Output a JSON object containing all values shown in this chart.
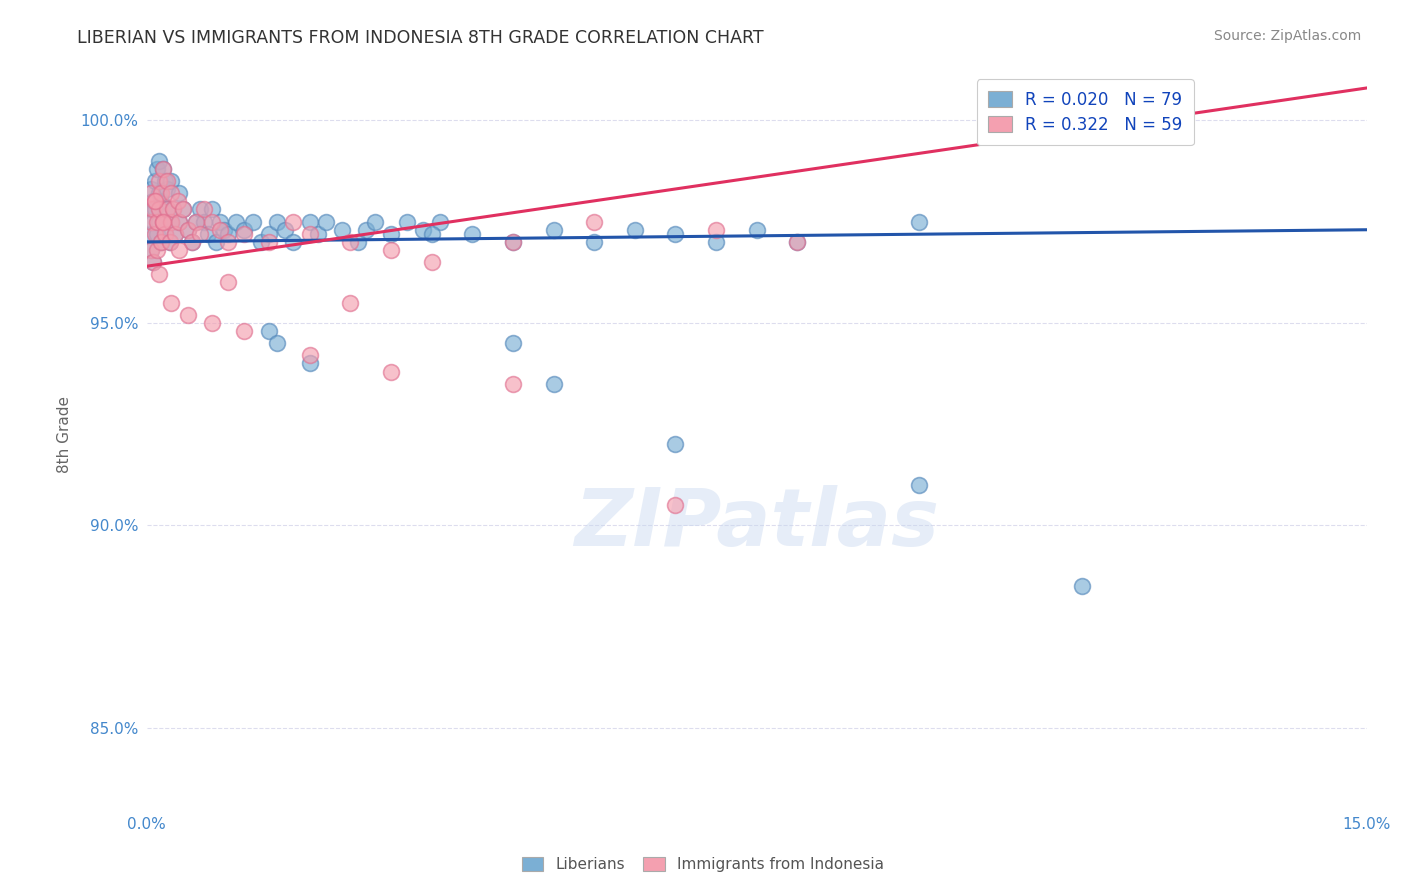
{
  "title": "LIBERIAN VS IMMIGRANTS FROM INDONESIA 8TH GRADE CORRELATION CHART",
  "source": "Source: ZipAtlas.com",
  "ylabel": "8th Grade",
  "xlim": [
    0.0,
    15.0
  ],
  "ylim": [
    83.0,
    101.5
  ],
  "y_ticks": [
    85.0,
    90.0,
    95.0,
    100.0
  ],
  "y_tick_labels": [
    "85.0%",
    "90.0%",
    "95.0%",
    "100.0%"
  ],
  "x_ticks": [
    0.0,
    5.0,
    10.0,
    15.0
  ],
  "x_tick_labels": [
    "0.0%",
    "",
    "",
    "15.0%"
  ],
  "grid_color": "#ddddee",
  "background_color": "#ffffff",
  "blue_color": "#7bafd4",
  "pink_color": "#f4a0b0",
  "blue_edge_color": "#5588bb",
  "pink_edge_color": "#e07090",
  "blue_line_color": "#2255aa",
  "pink_line_color": "#e03060",
  "R_blue": 0.02,
  "N_blue": 79,
  "R_pink": 0.322,
  "N_pink": 59,
  "legend_label_blue": "Liberians",
  "legend_label_pink": "Immigrants from Indonesia",
  "watermark": "ZIPatlas",
  "blue_scatter_x": [
    0.05,
    0.05,
    0.05,
    0.05,
    0.08,
    0.08,
    0.08,
    0.1,
    0.1,
    0.12,
    0.12,
    0.15,
    0.15,
    0.15,
    0.18,
    0.18,
    0.2,
    0.2,
    0.22,
    0.22,
    0.25,
    0.25,
    0.28,
    0.3,
    0.3,
    0.32,
    0.35,
    0.4,
    0.4,
    0.45,
    0.5,
    0.55,
    0.6,
    0.65,
    0.7,
    0.75,
    0.8,
    0.85,
    0.9,
    0.95,
    1.0,
    1.1,
    1.2,
    1.3,
    1.4,
    1.5,
    1.6,
    1.7,
    1.8,
    2.0,
    2.1,
    2.2,
    2.4,
    2.6,
    2.7,
    2.8,
    3.0,
    3.2,
    3.4,
    3.6,
    4.0,
    4.5,
    5.0,
    5.5,
    6.0,
    6.5,
    7.0,
    7.5,
    8.0,
    9.5,
    1.5,
    1.6,
    2.0,
    4.5,
    5.0,
    6.5,
    9.5,
    11.5,
    3.5
  ],
  "blue_scatter_y": [
    97.2,
    97.8,
    98.3,
    96.8,
    97.5,
    98.0,
    96.5,
    97.8,
    98.5,
    97.2,
    98.8,
    97.5,
    98.2,
    99.0,
    97.0,
    98.0,
    97.5,
    98.8,
    97.2,
    98.5,
    97.8,
    98.3,
    97.0,
    97.5,
    98.5,
    97.8,
    97.2,
    97.5,
    98.2,
    97.8,
    97.3,
    97.0,
    97.5,
    97.8,
    97.5,
    97.2,
    97.8,
    97.0,
    97.5,
    97.3,
    97.2,
    97.5,
    97.3,
    97.5,
    97.0,
    97.2,
    97.5,
    97.3,
    97.0,
    97.5,
    97.2,
    97.5,
    97.3,
    97.0,
    97.3,
    97.5,
    97.2,
    97.5,
    97.3,
    97.5,
    97.2,
    97.0,
    97.3,
    97.0,
    97.3,
    97.2,
    97.0,
    97.3,
    97.0,
    97.5,
    94.8,
    94.5,
    94.0,
    94.5,
    93.5,
    92.0,
    91.0,
    88.5,
    97.2
  ],
  "pink_scatter_x": [
    0.05,
    0.05,
    0.05,
    0.08,
    0.08,
    0.1,
    0.1,
    0.12,
    0.12,
    0.15,
    0.15,
    0.18,
    0.18,
    0.2,
    0.2,
    0.22,
    0.25,
    0.25,
    0.28,
    0.3,
    0.3,
    0.32,
    0.35,
    0.38,
    0.4,
    0.45,
    0.5,
    0.55,
    0.6,
    0.65,
    0.7,
    0.8,
    0.9,
    1.0,
    1.2,
    1.5,
    1.8,
    2.0,
    2.5,
    3.0,
    3.5,
    4.5,
    5.5,
    7.0,
    8.0,
    0.15,
    0.3,
    0.5,
    0.8,
    1.2,
    2.0,
    3.0,
    4.5,
    6.5,
    0.1,
    0.2,
    0.4,
    1.0,
    2.5
  ],
  "pink_scatter_y": [
    97.5,
    98.2,
    96.8,
    97.8,
    96.5,
    97.2,
    98.0,
    97.5,
    96.8,
    97.8,
    98.5,
    97.0,
    98.2,
    97.5,
    98.8,
    97.2,
    97.8,
    98.5,
    97.0,
    97.5,
    98.2,
    97.8,
    97.2,
    98.0,
    97.5,
    97.8,
    97.3,
    97.0,
    97.5,
    97.2,
    97.8,
    97.5,
    97.3,
    97.0,
    97.2,
    97.0,
    97.5,
    97.2,
    97.0,
    96.8,
    96.5,
    97.0,
    97.5,
    97.3,
    97.0,
    96.2,
    95.5,
    95.2,
    95.0,
    94.8,
    94.2,
    93.8,
    93.5,
    90.5,
    98.0,
    97.5,
    96.8,
    96.0,
    95.5
  ]
}
